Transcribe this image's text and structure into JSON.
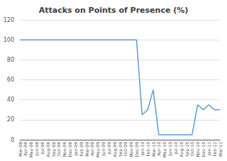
{
  "chart_data": {
    "type": "line",
    "title": "Attacks on Points of Presence (%)",
    "categories": [
      "Mar-08",
      "Apr-08",
      "May-08",
      "Jun-08",
      "Jul-08",
      "Aug-08",
      "Sep-08",
      "Oct-08",
      "Nov-08",
      "Dec-08",
      "Jan-09",
      "Feb-09",
      "Mar-09",
      "Apr-09",
      "May-09",
      "Jun-09",
      "Jul-09",
      "Aug-09",
      "Sep-09",
      "Oct-09",
      "Nov-09",
      "Dec-09",
      "Jan-10",
      "Feb-10",
      "Mar-10",
      "Apr-10",
      "May-10",
      "Jun-10",
      "Jul-10",
      "Aug-10",
      "Sep-10",
      "Oct-10",
      "Nov-10",
      "Dec-10",
      "Jan-11",
      "Feb-11",
      "Mar-11"
    ],
    "values": [
      100,
      100,
      100,
      100,
      100,
      100,
      100,
      100,
      100,
      100,
      100,
      100,
      100,
      100,
      100,
      100,
      100,
      100,
      100,
      100,
      100,
      100,
      25,
      30,
      50,
      5,
      5,
      5,
      5,
      5,
      5,
      5,
      35,
      30,
      35,
      30,
      30
    ],
    "color": "#5B9BD5",
    "ylim": [
      0,
      120
    ],
    "yticks": [
      0,
      20,
      40,
      60,
      80,
      100,
      120
    ],
    "grid": true
  }
}
